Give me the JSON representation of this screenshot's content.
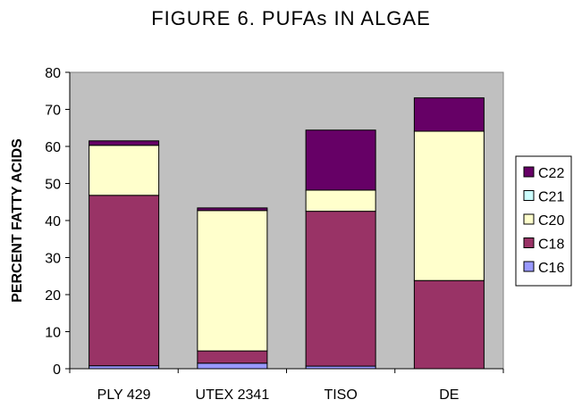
{
  "chart_data": {
    "type": "stacked-bar",
    "title": "FIGURE 6. PUFAs IN ALGAE",
    "xlabel": "",
    "ylabel": "PERCENT FATTY ACIDS",
    "ylim": [
      0,
      80
    ],
    "yticks": [
      0,
      10,
      20,
      30,
      40,
      50,
      60,
      70,
      80
    ],
    "grid": false,
    "legend_position": "right",
    "plot_background": "#c0c0c0",
    "categories": [
      "PLY 429",
      "UTEX 2341",
      "TISO",
      "DE"
    ],
    "series": [
      {
        "name": "C16",
        "color": "#9999ff",
        "values": [
          0.8,
          1.5,
          0.7,
          0
        ]
      },
      {
        "name": "C18",
        "color": "#993366",
        "values": [
          46.0,
          3.3,
          41.8,
          23.8
        ]
      },
      {
        "name": "C20",
        "color": "#ffffcc",
        "values": [
          13.5,
          37.9,
          5.7,
          40.3
        ]
      },
      {
        "name": "C21",
        "color": "#ccffff",
        "values": [
          0,
          0,
          0,
          0
        ]
      },
      {
        "name": "C22",
        "color": "#660066",
        "values": [
          1.2,
          0.7,
          16.2,
          9.0
        ]
      }
    ]
  }
}
